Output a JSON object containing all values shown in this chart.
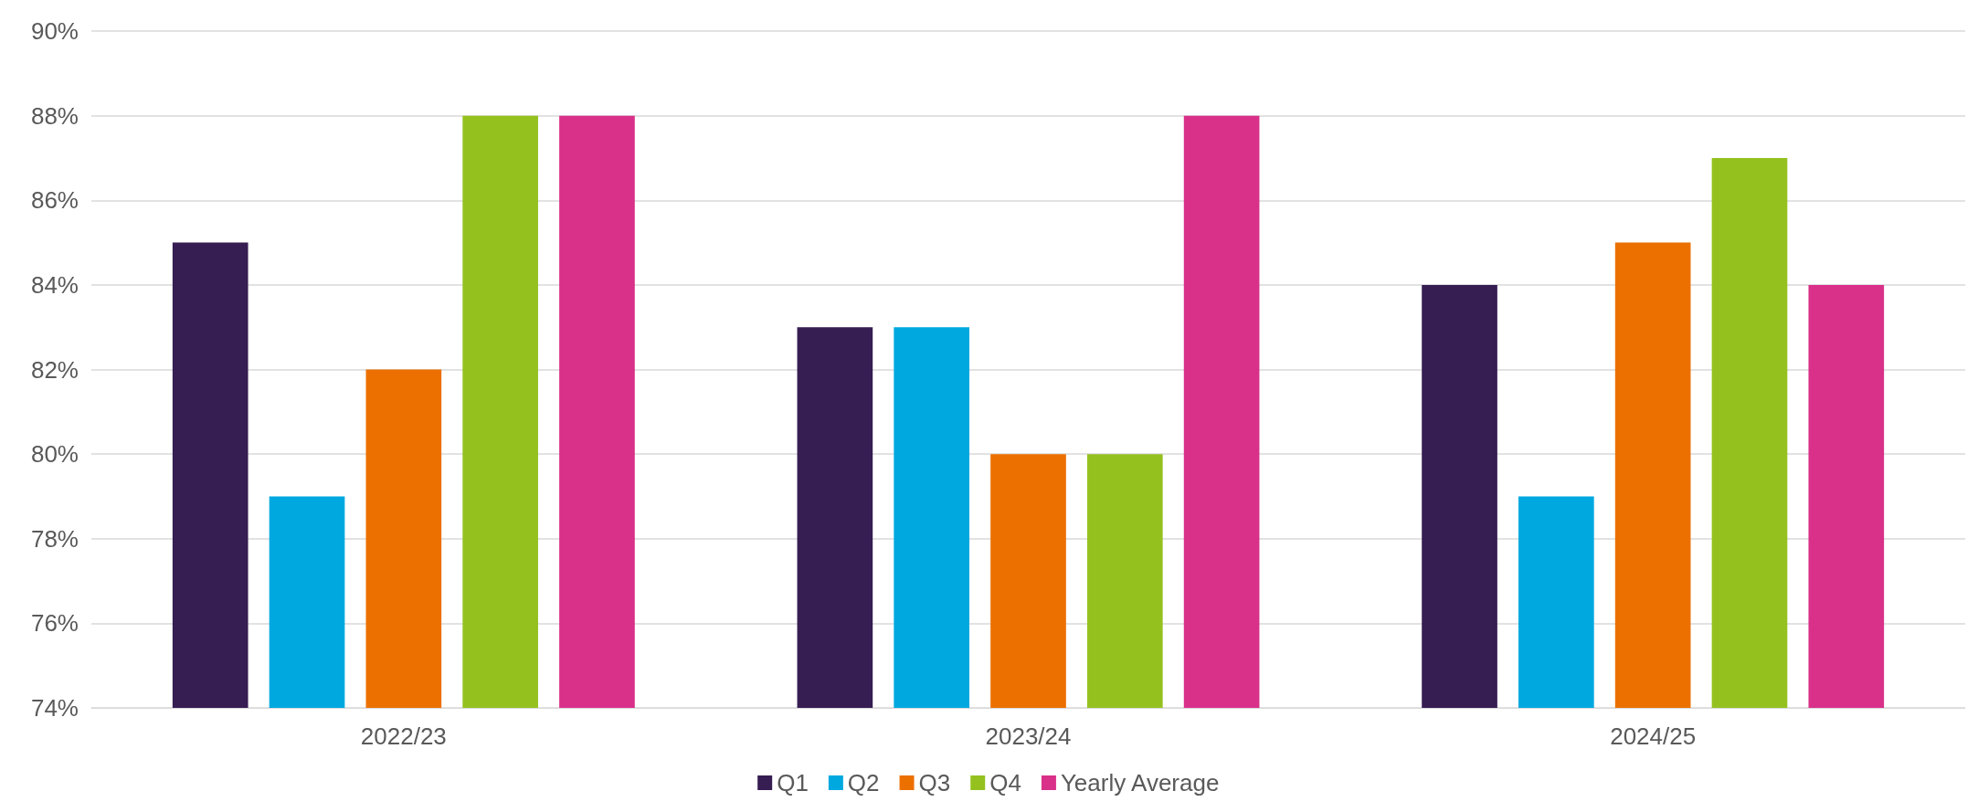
{
  "chart_data": {
    "type": "bar",
    "categories": [
      "2022/23",
      "2023/24",
      "2024/25"
    ],
    "series": [
      {
        "name": "Q1",
        "color": "#361d52",
        "values": [
          85,
          83,
          84
        ]
      },
      {
        "name": "Q2",
        "color": "#00a8e0",
        "values": [
          79,
          83,
          79
        ]
      },
      {
        "name": "Q3",
        "color": "#ec7000",
        "values": [
          82,
          80,
          85
        ]
      },
      {
        "name": "Q4",
        "color": "#95c11f",
        "values": [
          88,
          80,
          87
        ]
      },
      {
        "name": "Yearly Average",
        "color": "#d9308a",
        "values": [
          88,
          88,
          84
        ]
      }
    ],
    "ylim": [
      74,
      90
    ],
    "yticks": [
      {
        "value": 74,
        "label": "74%"
      },
      {
        "value": 76,
        "label": "76%"
      },
      {
        "value": 78,
        "label": "78%"
      },
      {
        "value": 80,
        "label": "80%"
      },
      {
        "value": 82,
        "label": "82%"
      },
      {
        "value": 84,
        "label": "84%"
      },
      {
        "value": 86,
        "label": "86%"
      },
      {
        "value": 88,
        "label": "88%"
      },
      {
        "value": 90,
        "label": "90%"
      }
    ],
    "grid": "y",
    "legend": "bottom"
  }
}
